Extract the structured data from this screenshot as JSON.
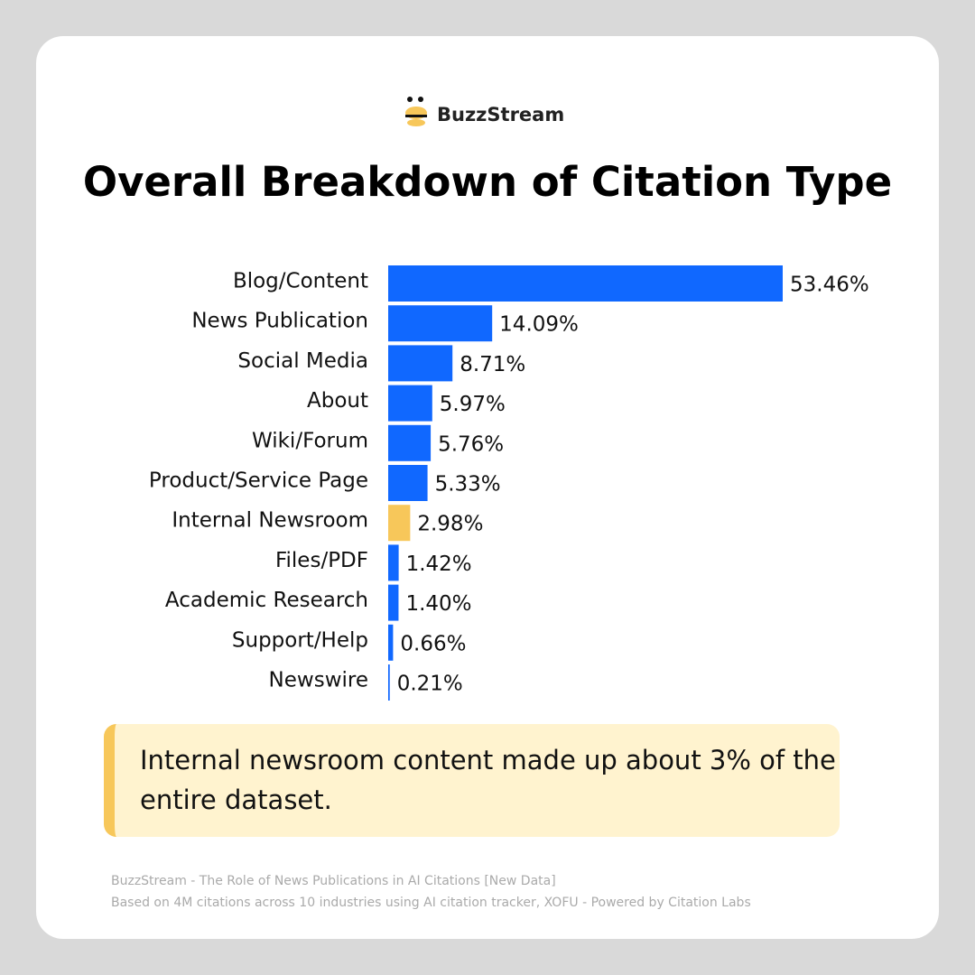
{
  "brand": "BuzzStream",
  "chart_data": {
    "type": "hbar",
    "title": "Overall Breakdown of Citation Type",
    "categories": [
      "Blog/Content",
      "News Publication",
      "Social Media",
      "About",
      "Wiki/Forum",
      "Product/Service Page",
      "Internal Newsroom",
      "Files/PDF",
      "Academic Research",
      "Support/Help",
      "Newswire"
    ],
    "values": [
      53.46,
      14.09,
      8.71,
      5.97,
      5.76,
      5.33,
      2.98,
      1.42,
      1.4,
      0.66,
      0.21
    ],
    "value_labels": [
      "53.46%",
      "14.09%",
      "8.71%",
      "5.97%",
      "5.76%",
      "5.33%",
      "2.98%",
      "1.42%",
      "1.40%",
      "0.66%",
      "0.21%"
    ],
    "colors": [
      "#1068ff",
      "#1068ff",
      "#1068ff",
      "#1068ff",
      "#1068ff",
      "#1068ff",
      "#f7c75a",
      "#1068ff",
      "#1068ff",
      "#1068ff",
      "#1068ff"
    ]
  },
  "callout": "Internal newsroom content made up about 3% of the entire dataset.",
  "footer": [
    "BuzzStream - The Role of News Publications in AI Citations [New Data]",
    "Based on 4M citations across 10 industries using AI citation tracker, XOFU - Powered by Citation Labs"
  ]
}
